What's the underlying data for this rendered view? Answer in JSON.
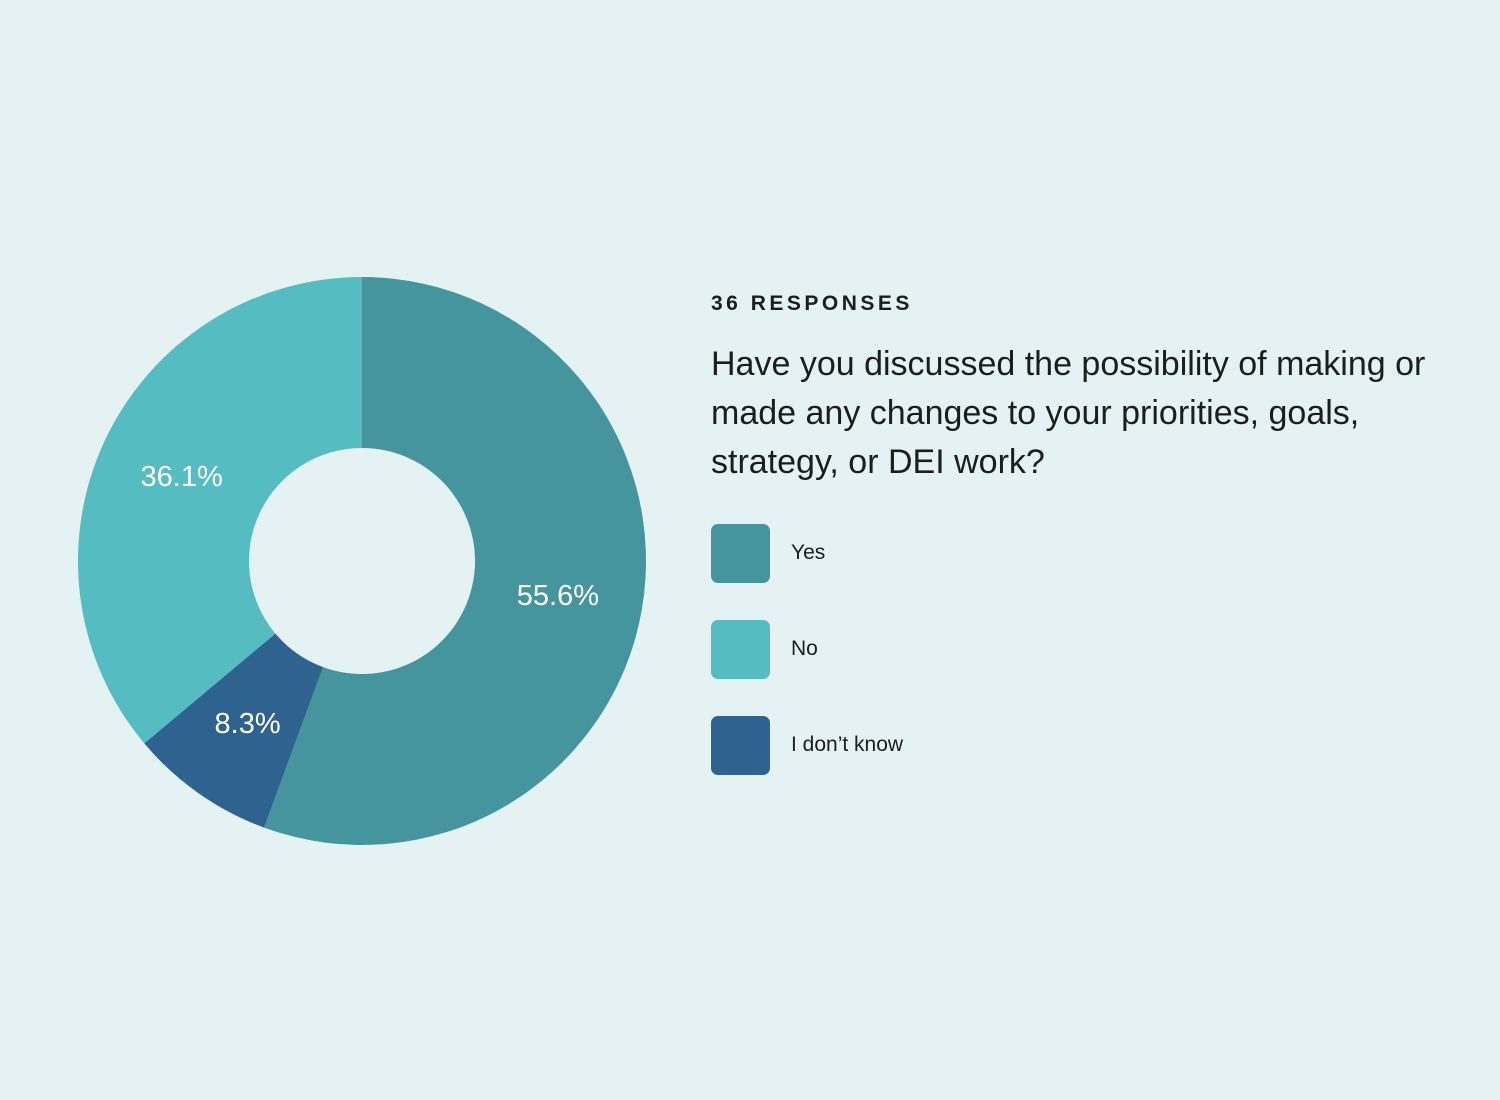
{
  "header": {
    "responses": "36 RESPONSES",
    "question": "Have you discussed the possibility of making or made any changes to your priorities, goals, strategy, or DEI work?"
  },
  "chart_data": {
    "type": "pie",
    "categories": [
      "Yes",
      "No",
      "I don’t know"
    ],
    "values": [
      55.6,
      36.1,
      8.3
    ],
    "value_labels": [
      "55.6%",
      "36.1%",
      "8.3%"
    ],
    "slices": [
      {
        "label": "Yes",
        "value": 55.6,
        "display": "55.6%",
        "color": "#45959e"
      },
      {
        "label": "I don’t know",
        "value": 8.3,
        "display": "8.3%",
        "color": "#2e628f"
      },
      {
        "label": "No",
        "value": 36.1,
        "display": "36.1%",
        "color": "#55bcc1"
      }
    ],
    "donut": true,
    "legend": {
      "placement": "right",
      "items": [
        {
          "label": "Yes",
          "color": "#45959e"
        },
        {
          "label": "No",
          "color": "#55bcc1"
        },
        {
          "label": "I don’t know",
          "color": "#2e628f"
        }
      ]
    },
    "title": "",
    "xlabel": "",
    "ylabel": ""
  },
  "colors": {
    "background": "#e4f2f3",
    "text": "#1d1d1d",
    "label_text": "#ffffff"
  }
}
